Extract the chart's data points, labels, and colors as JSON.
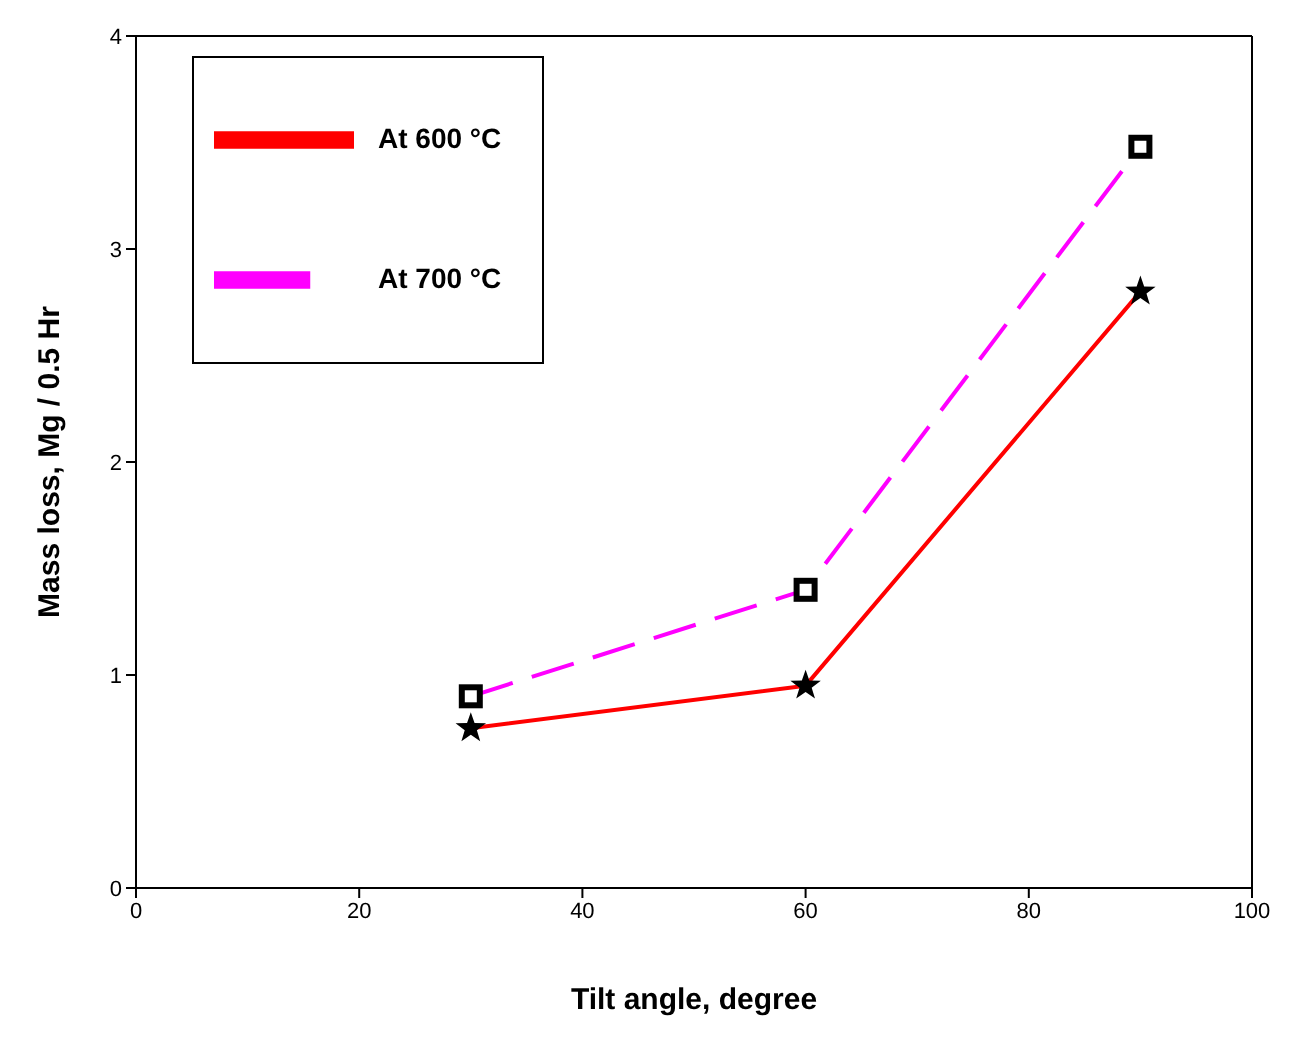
{
  "chart_data": {
    "type": "line",
    "xlabel": "Tilt angle, degree",
    "ylabel": "Mass loss, Mg / 0.5 Hr",
    "x": [
      30,
      60,
      90
    ],
    "series": [
      {
        "name": "At 600 °C",
        "color": "#ff0000",
        "values": [
          0.75,
          0.95,
          2.8
        ],
        "marker": "star",
        "line_style": "solid"
      },
      {
        "name": "At 700 °C",
        "color": "#ff00ff",
        "values": [
          0.9,
          1.4,
          3.48
        ],
        "marker": "square",
        "line_style": "dashed"
      }
    ],
    "xlim": [
      0,
      100
    ],
    "xticks": [
      0,
      20,
      40,
      60,
      80,
      100
    ],
    "ylim": [
      0,
      4
    ],
    "yticks": [
      0,
      1,
      2,
      3,
      4
    ],
    "grid": false,
    "legend": "top left"
  }
}
